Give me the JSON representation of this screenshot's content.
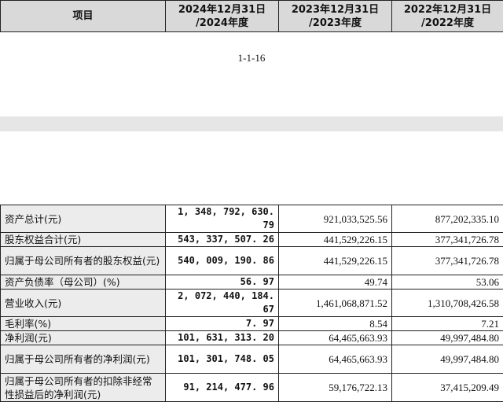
{
  "header": {
    "columns": [
      {
        "line1": "项目",
        "line2": ""
      },
      {
        "line1": "2024年12月31日",
        "line2": "/2024年度"
      },
      {
        "line1": "2023年12月31日",
        "line2": "/2023年度"
      },
      {
        "line1": "2022年12月31日",
        "line2": "/2022年度"
      }
    ]
  },
  "page_number": "1-1-16",
  "rows": [
    {
      "label": "资产总计(元)",
      "v2024": "1, 348, 792, 630. 79",
      "v2023": "921,033,525.56",
      "v2022": "877,202,335.10"
    },
    {
      "label": "股东权益合计(元)",
      "v2024": "543, 337, 507. 26",
      "v2023": "441,529,226.15",
      "v2022": "377,341,726.78"
    },
    {
      "label": "归属于母公司所有者的股东权益(元)",
      "v2024": "540, 009, 190. 86",
      "v2023": "441,529,226.15",
      "v2022": "377,341,726.78"
    },
    {
      "label": "资产负债率（母公司）(%)",
      "v2024": "56. 97",
      "v2023": "49.74",
      "v2022": "53.06"
    },
    {
      "label": "营业收入(元)",
      "v2024": "2, 072, 440, 184. 67",
      "v2023": "1,461,068,871.52",
      "v2022": "1,310,708,426.58"
    },
    {
      "label": "毛利率(%)",
      "v2024": "7. 97",
      "v2023": "8.54",
      "v2022": "7.21"
    },
    {
      "label": "净利润(元)",
      "v2024": "101, 631, 313. 20",
      "v2023": "64,465,663.93",
      "v2022": "49,997,484.80"
    },
    {
      "label": "归属于母公司所有者的净利润(元)",
      "v2024": "101, 301, 748. 05",
      "v2023": "64,465,663.93",
      "v2022": "49,997,484.80"
    },
    {
      "label": "归属于母公司所有者的扣除非经常性损益后的净利润(元)",
      "v2024": "91, 214, 477. 96",
      "v2023": "59,176,722.13",
      "v2022": "37,415,209.49"
    }
  ]
}
